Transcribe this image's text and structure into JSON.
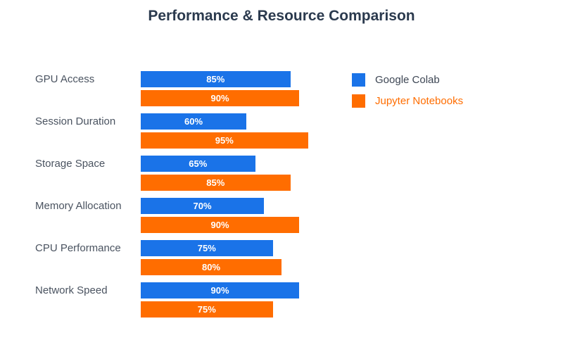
{
  "title": "Performance & Resource Comparison",
  "colors": {
    "background": "#ffffff",
    "colab_blue": "#1a73e8",
    "jupyter_orange": "#ff6d00",
    "title_text": "#2b3a4e",
    "category_text": "#4a5360",
    "value_text": "#ffffff",
    "legend_colab_text": "#3d4654",
    "legend_jupyter_text": "#ff6d00"
  },
  "legend": {
    "position": "top-right",
    "items": [
      {
        "label": "Google Colab",
        "swatch_color": "#1a73e8",
        "text_color": "#3d4654"
      },
      {
        "label": "Jupyter Notebooks",
        "swatch_color": "#ff6d00",
        "text_color": "#ff6d00"
      }
    ]
  },
  "chart_data": {
    "type": "bar",
    "orientation": "horizontal",
    "title": "Performance & Resource Comparison",
    "categories": [
      "GPU Access",
      "Session Duration",
      "Storage Space",
      "Memory Allocation",
      "CPU Performance",
      "Network Speed"
    ],
    "series": [
      {
        "name": "Google Colab",
        "color": "#1a73e8",
        "values": [
          85,
          60,
          65,
          70,
          75,
          90
        ]
      },
      {
        "name": "Jupyter Notebooks",
        "color": "#ff6d00",
        "values": [
          90,
          95,
          85,
          90,
          80,
          75
        ]
      }
    ],
    "value_suffix": "%",
    "xlim": [
      0,
      100
    ],
    "value_labels": "inside-center",
    "grid": false,
    "axes_hidden": true,
    "legend_position": "top-right"
  }
}
